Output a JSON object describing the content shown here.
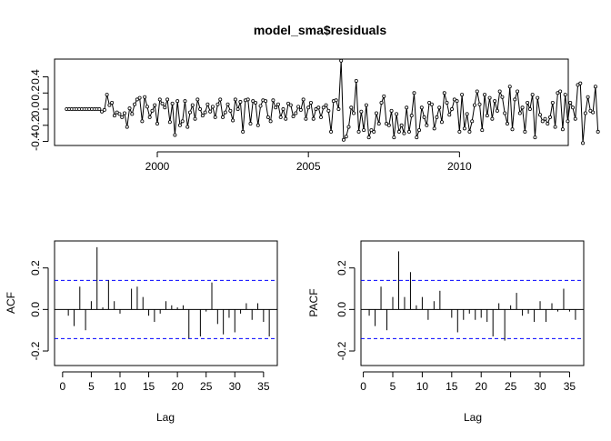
{
  "chart_data": [
    {
      "type": "line",
      "title": "model_sma$residuals",
      "xlabel": "",
      "ylabel": "",
      "xlim": [
        1996.6,
        2013.6
      ],
      "ylim": [
        -0.45,
        0.62
      ],
      "x_start": 1997.0,
      "x_step": 0.0833333,
      "xticks": [
        2000,
        2005,
        2010
      ],
      "xtick_labels": [
        "2000",
        "2005",
        "2010"
      ],
      "yticks": [
        -0.4,
        -0.2,
        0.0,
        0.2,
        0.4
      ],
      "ytick_labels": [
        "-0.4",
        "-0.2",
        "0.0",
        "0.2",
        "0.4"
      ],
      "markers": "open-circle",
      "color": "#000000",
      "values": [
        0.0,
        0.0,
        0.0,
        0.0,
        0.0,
        0.0,
        0.0,
        0.0,
        0.0,
        0.0,
        0.0,
        0.0,
        0.0,
        0.0,
        -0.03,
        -0.01,
        0.18,
        0.05,
        0.08,
        -0.08,
        -0.04,
        -0.06,
        -0.1,
        -0.05,
        -0.22,
        0.01,
        -0.06,
        0.06,
        0.12,
        0.14,
        -0.15,
        0.15,
        0.03,
        -0.1,
        -0.02,
        0.05,
        -0.18,
        0.12,
        0.07,
        0.02,
        0.12,
        -0.16,
        0.07,
        -0.32,
        0.1,
        -0.2,
        -0.15,
        0.1,
        -0.22,
        -0.04,
        0.05,
        -0.12,
        0.12,
        0.0,
        -0.08,
        -0.04,
        0.06,
        -0.03,
        0.03,
        -0.1,
        0.06,
        0.12,
        -0.1,
        -0.04,
        0.06,
        -0.02,
        -0.14,
        0.12,
        0.0,
        0.09,
        -0.28,
        0.11,
        0.12,
        -0.18,
        0.1,
        0.08,
        -0.2,
        0.04,
        0.11,
        0.1,
        -0.1,
        -0.15,
        0.11,
        0.02,
        0.06,
        -0.1,
        0.0,
        -0.12,
        0.07,
        0.05,
        -0.09,
        -0.05,
        0.03,
        -0.01,
        0.12,
        -0.12,
        0.02,
        0.08,
        -0.12,
        0.0,
        0.02,
        -0.1,
        0.02,
        0.05,
        -0.02,
        -0.28,
        0.1,
        0.11,
        0.0,
        0.6,
        -0.38,
        -0.34,
        -0.22,
        0.02,
        -0.05,
        0.35,
        -0.28,
        -0.03,
        -0.26,
        0.05,
        -0.35,
        -0.26,
        -0.28,
        -0.05,
        -0.18,
        0.08,
        0.16,
        -0.18,
        -0.2,
        -0.02,
        -0.35,
        -0.06,
        -0.28,
        -0.2,
        -0.3,
        0.02,
        -0.28,
        -0.08,
        0.2,
        -0.35,
        -0.26,
        0.02,
        -0.1,
        -0.2,
        0.08,
        0.06,
        -0.24,
        -0.1,
        0.02,
        -0.16,
        0.2,
        0.08,
        -0.07,
        0.0,
        0.12,
        0.1,
        -0.28,
        0.18,
        -0.24,
        -0.06,
        -0.28,
        -0.15,
        0.05,
        0.22,
        0.06,
        -0.26,
        0.18,
        -0.08,
        0.14,
        -0.12,
        0.1,
        -0.02,
        0.22,
        0.15,
        -0.05,
        -0.18,
        0.28,
        -0.25,
        0.12,
        0.22,
        -0.05,
        0.02,
        -0.28,
        0.08,
        0.0,
        0.18,
        -0.35,
        0.14,
        -0.07,
        -0.15,
        -0.12,
        -0.18,
        -0.1,
        0.08,
        -0.22,
        0.2,
        0.22,
        -0.25,
        0.18,
        -0.15,
        0.08,
        0.02,
        -0.12,
        0.3,
        0.32,
        -0.42,
        -0.05,
        0.15,
        -0.02,
        -0.04,
        0.28,
        -0.28
      ]
    },
    {
      "type": "bar",
      "title": "",
      "xlabel": "Lag",
      "ylabel": "ACF",
      "xlim": [
        -1.4,
        37.4
      ],
      "ylim": [
        -0.27,
        0.33
      ],
      "xticks": [
        0,
        5,
        10,
        15,
        20,
        25,
        30,
        35
      ],
      "xtick_labels": [
        "0",
        "5",
        "10",
        "15",
        "20",
        "25",
        "30",
        "35"
      ],
      "yticks": [
        -0.2,
        0.0,
        0.2
      ],
      "ytick_labels": [
        "-0.2",
        "0.0",
        "0.2"
      ],
      "conf_limit": 0.14,
      "conf_color": "#0000ff",
      "lags": [
        1,
        2,
        3,
        4,
        5,
        6,
        7,
        8,
        9,
        10,
        11,
        12,
        13,
        14,
        15,
        16,
        17,
        18,
        19,
        20,
        21,
        22,
        23,
        24,
        25,
        26,
        27,
        28,
        29,
        30,
        31,
        32,
        33,
        34,
        35,
        36
      ],
      "values": [
        -0.03,
        -0.08,
        0.11,
        -0.1,
        0.04,
        0.3,
        0.01,
        0.14,
        0.04,
        -0.02,
        0.0,
        0.1,
        0.11,
        0.06,
        -0.03,
        -0.06,
        -0.02,
        0.04,
        0.02,
        0.01,
        0.02,
        -0.14,
        0.0,
        -0.13,
        -0.01,
        0.13,
        -0.07,
        -0.12,
        -0.04,
        -0.11,
        -0.02,
        0.03,
        -0.05,
        0.03,
        -0.06,
        -0.13
      ]
    },
    {
      "type": "bar",
      "title": "",
      "xlabel": "Lag",
      "ylabel": "PACF",
      "xlim": [
        -0.4,
        37.4
      ],
      "ylim": [
        -0.27,
        0.33
      ],
      "xticks": [
        0,
        5,
        10,
        15,
        20,
        25,
        30,
        35
      ],
      "xtick_labels": [
        "0",
        "5",
        "10",
        "15",
        "20",
        "25",
        "30",
        "35"
      ],
      "yticks": [
        -0.2,
        0.0,
        0.2
      ],
      "ytick_labels": [
        "-0.2",
        "0.0",
        "0.2"
      ],
      "conf_limit": 0.14,
      "conf_color": "#0000ff",
      "lags": [
        1,
        2,
        3,
        4,
        5,
        6,
        7,
        8,
        9,
        10,
        11,
        12,
        13,
        14,
        15,
        16,
        17,
        18,
        19,
        20,
        21,
        22,
        23,
        24,
        25,
        26,
        27,
        28,
        29,
        30,
        31,
        32,
        33,
        34,
        35,
        36
      ],
      "values": [
        -0.03,
        -0.08,
        0.11,
        -0.1,
        0.06,
        0.28,
        0.06,
        0.18,
        0.02,
        0.06,
        -0.05,
        0.04,
        0.09,
        0.0,
        -0.04,
        -0.11,
        -0.05,
        -0.02,
        -0.05,
        -0.04,
        -0.06,
        -0.13,
        0.03,
        -0.15,
        0.02,
        0.08,
        -0.03,
        -0.02,
        -0.06,
        0.04,
        -0.06,
        0.03,
        -0.01,
        0.1,
        -0.01,
        -0.05
      ]
    }
  ]
}
